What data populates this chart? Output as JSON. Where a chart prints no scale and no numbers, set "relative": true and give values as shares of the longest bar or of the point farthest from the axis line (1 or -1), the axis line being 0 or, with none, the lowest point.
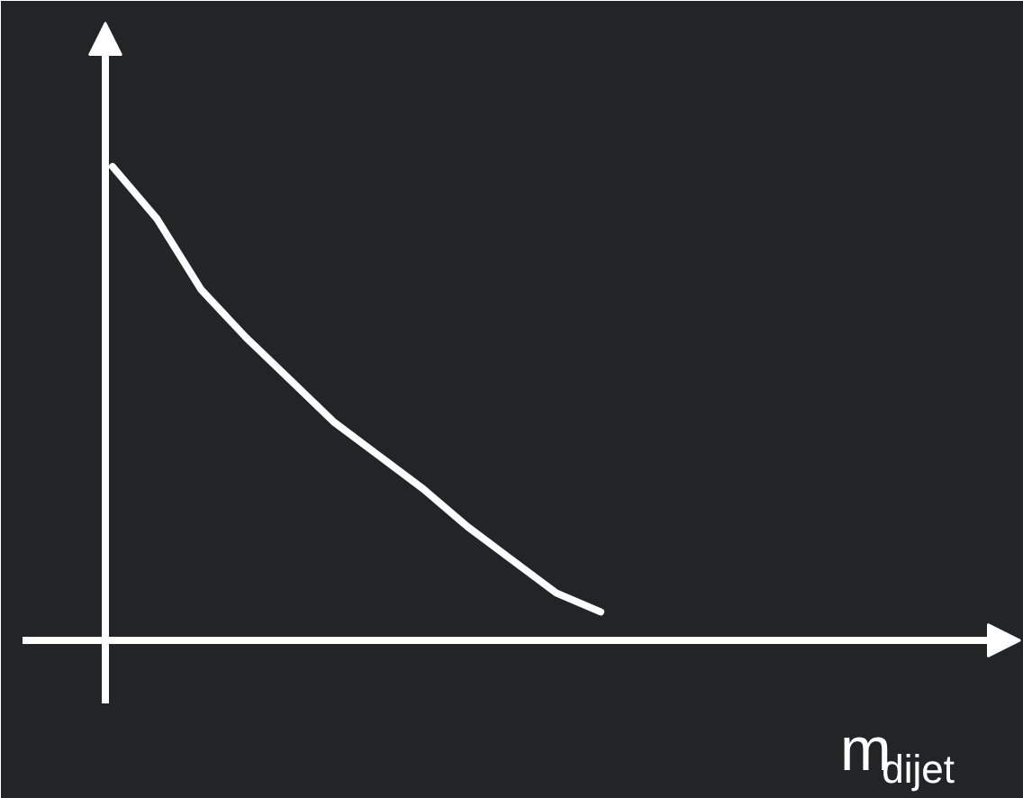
{
  "chart_data": {
    "type": "line",
    "relative": true,
    "xlabel": "m$_{dijet}$",
    "categories": [
      null,
      null,
      null,
      null,
      null,
      null,
      null,
      null,
      null,
      null,
      null,
      null
    ],
    "series": [
      {
        "color": "#ffffff",
        "values": [
          1,
          0.89,
          0.74,
          0.64,
          0.55,
          0.46,
          0.39,
          0.32,
          0.24,
          0.17,
          0.1,
          0.06
        ]
      }
    ],
    "grid": false,
    "tick_labels": false,
    "marker": "none",
    "line_style": "solid"
  }
}
